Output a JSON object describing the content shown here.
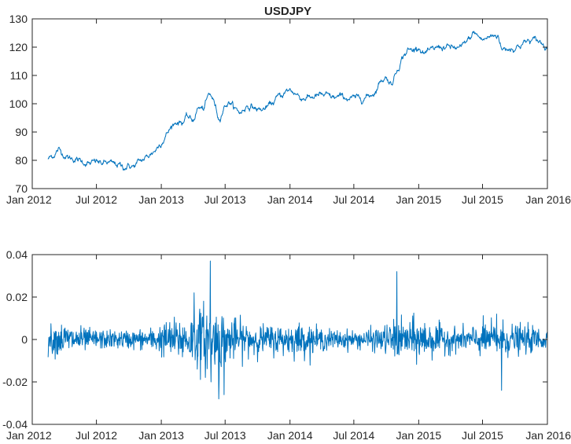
{
  "chart_data": [
    {
      "type": "line",
      "title": "USDJPY",
      "xlabel": "",
      "ylabel": "",
      "x_ticks": [
        "Jan 2012",
        "Jul 2012",
        "Jan 2013",
        "Jul 2013",
        "Jan 2014",
        "Jul 2014",
        "Jan 2015",
        "Jul 2015",
        "Jan 2016"
      ],
      "xlim": [
        "2012-01-01",
        "2016-01-01"
      ],
      "ylim": [
        70,
        130
      ],
      "y_ticks": [
        "70",
        "80",
        "90",
        "100",
        "110",
        "120",
        "130"
      ],
      "grid": false,
      "color": "#0072bd",
      "series": [
        {
          "x": [
            "2012-02-15",
            "2012-03-01",
            "2012-03-15",
            "2012-04-01",
            "2012-04-15",
            "2012-05-01",
            "2012-05-15",
            "2012-06-01",
            "2012-06-15",
            "2012-07-01",
            "2012-07-15",
            "2012-08-01",
            "2012-08-15",
            "2012-09-01",
            "2012-09-15",
            "2012-10-01",
            "2012-10-15",
            "2012-11-01",
            "2012-11-15",
            "2012-12-01",
            "2012-12-15",
            "2013-01-01",
            "2013-01-15",
            "2013-02-01",
            "2013-02-15",
            "2013-03-01",
            "2013-03-15",
            "2013-04-01",
            "2013-04-15",
            "2013-05-01",
            "2013-05-15",
            "2013-05-22",
            "2013-06-01",
            "2013-06-13",
            "2013-07-01",
            "2013-07-15",
            "2013-08-01",
            "2013-08-15",
            "2013-09-01",
            "2013-09-15",
            "2013-10-01",
            "2013-10-15",
            "2013-11-01",
            "2013-11-15",
            "2013-12-01",
            "2013-12-15",
            "2014-01-01",
            "2014-01-15",
            "2014-02-01",
            "2014-03-01",
            "2014-04-01",
            "2014-05-01",
            "2014-06-01",
            "2014-07-01",
            "2014-08-01",
            "2014-08-15",
            "2014-09-01",
            "2014-09-15",
            "2014-10-01",
            "2014-10-15",
            "2014-11-01",
            "2014-11-15",
            "2014-12-01",
            "2014-12-15",
            "2015-01-01",
            "2015-01-15",
            "2015-02-01",
            "2015-03-01",
            "2015-04-01",
            "2015-05-01",
            "2015-06-01",
            "2015-06-05",
            "2015-07-01",
            "2015-08-01",
            "2015-08-15",
            "2015-08-24",
            "2015-09-01",
            "2015-10-01",
            "2015-11-01",
            "2015-12-01",
            "2015-12-15",
            "2015-12-31"
          ],
          "y": [
            80.5,
            81.8,
            83.8,
            82.0,
            80.8,
            80.5,
            79.8,
            79.2,
            78.6,
            79.6,
            78.8,
            79.2,
            78.6,
            78.4,
            77.6,
            78.0,
            77.8,
            79.6,
            80.5,
            82.2,
            83.6,
            86.5,
            89.0,
            92.3,
            93.8,
            93.5,
            95.2,
            94.0,
            98.6,
            98.0,
            102.8,
            103.0,
            100.2,
            94.6,
            99.7,
            100.6,
            97.8,
            96.8,
            99.4,
            99.0,
            98.0,
            97.8,
            99.0,
            100.6,
            102.6,
            103.7,
            104.9,
            103.9,
            102.1,
            102.3,
            103.0,
            102.1,
            102.3,
            101.7,
            102.3,
            103.0,
            104.5,
            108.3,
            109.5,
            106.9,
            112.1,
            116.4,
            119.0,
            118.8,
            120.5,
            117.8,
            118.2,
            120.2,
            119.8,
            119.5,
            124.0,
            125.3,
            122.5,
            124.1,
            124.4,
            119.0,
            119.5,
            119.8,
            121.9,
            122.5,
            121.5,
            120.2
          ]
        }
      ]
    },
    {
      "type": "line",
      "title": "",
      "xlabel": "",
      "ylabel": "",
      "x_ticks": [
        "Jan 2012",
        "Jul 2012",
        "Jan 2013",
        "Jul 2013",
        "Jan 2014",
        "Jul 2014",
        "Jan 2015",
        "Jul 2015",
        "Jan 2016"
      ],
      "xlim": [
        "2012-01-01",
        "2016-01-01"
      ],
      "ylim": [
        -0.04,
        0.04
      ],
      "y_ticks": [
        "-0.04",
        "-0.02",
        "0",
        "0.02",
        "0.04"
      ],
      "grid": false,
      "color": "#0072bd",
      "series": [
        {
          "x": [
            "2012-02-15",
            "2012-04-01",
            "2012-06-01",
            "2012-08-01",
            "2012-10-01",
            "2012-12-01",
            "2013-01-15",
            "2013-03-01",
            "2013-04-15",
            "2013-05-01",
            "2013-05-15",
            "2013-05-22",
            "2013-06-01",
            "2013-06-13",
            "2013-06-20",
            "2013-07-01",
            "2013-08-01",
            "2013-10-01",
            "2013-12-01",
            "2014-02-01",
            "2014-04-01",
            "2014-06-01",
            "2014-08-01",
            "2014-10-01",
            "2014-10-31",
            "2014-11-15",
            "2015-01-01",
            "2015-03-01",
            "2015-05-01",
            "2015-07-01",
            "2015-08-24",
            "2015-10-01",
            "2015-12-01",
            "2015-12-31"
          ],
          "amplitude": [
            0.008,
            0.009,
            0.006,
            0.005,
            0.005,
            0.006,
            0.01,
            0.012,
            0.015,
            0.02,
            0.018,
            0.017,
            0.014,
            0.022,
            0.016,
            0.013,
            0.011,
            0.008,
            0.008,
            0.009,
            0.006,
            0.005,
            0.005,
            0.008,
            0.011,
            0.01,
            0.012,
            0.008,
            0.006,
            0.009,
            0.01,
            0.008,
            0.007,
            0.006
          ],
          "spikes": [
            {
              "x": "2013-04-04",
              "y": 0.022
            },
            {
              "x": "2013-05-20",
              "y": 0.037
            },
            {
              "x": "2013-05-22",
              "y": -0.02
            },
            {
              "x": "2013-06-13",
              "y": -0.028
            },
            {
              "x": "2013-06-28",
              "y": -0.026
            },
            {
              "x": "2014-10-31",
              "y": 0.032
            },
            {
              "x": "2015-08-24",
              "y": -0.024
            },
            {
              "x": "2015-08-10",
              "y": 0.012
            }
          ]
        }
      ]
    }
  ]
}
